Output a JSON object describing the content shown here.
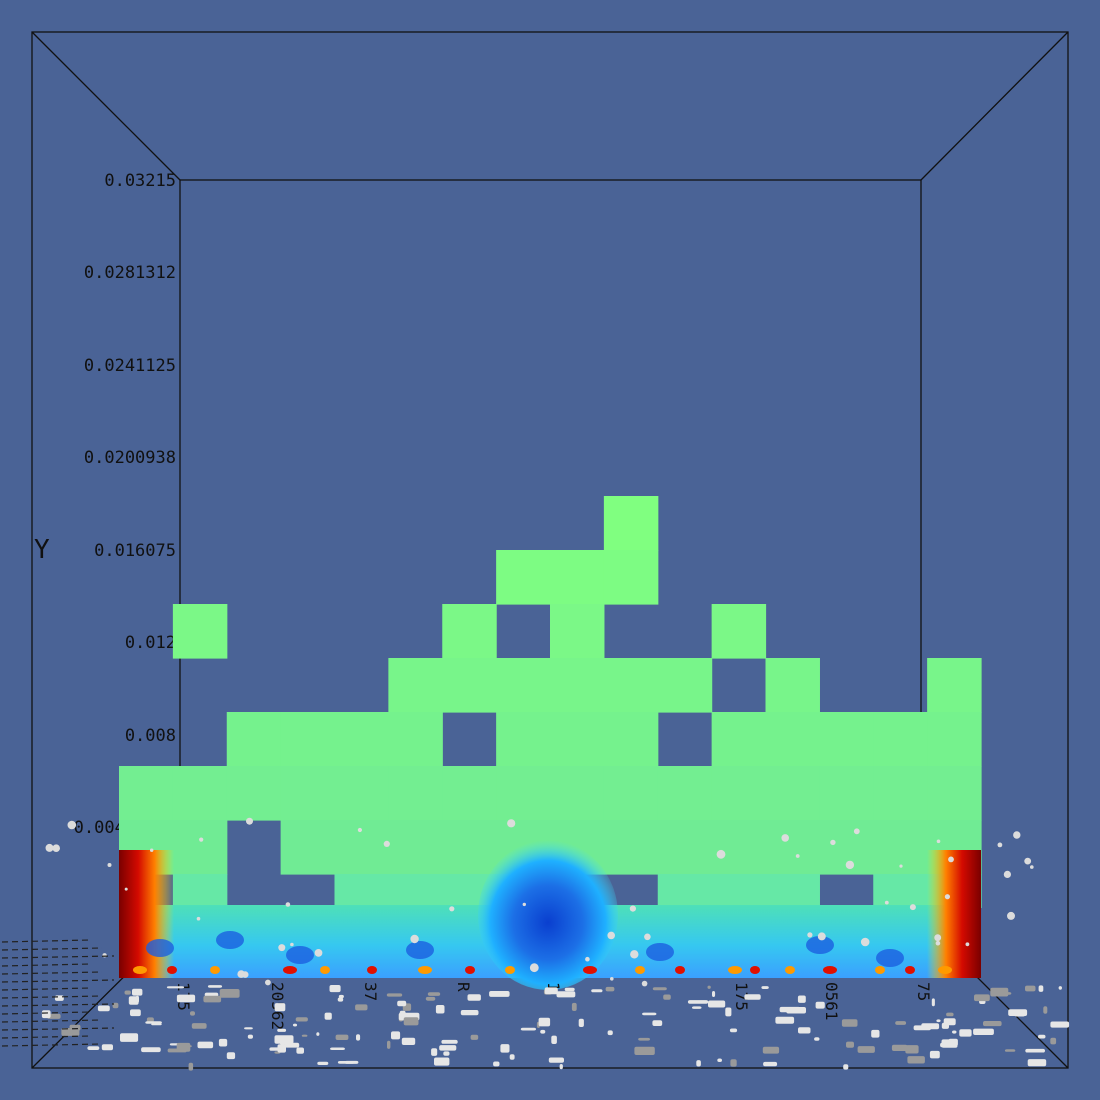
{
  "background": "#4a6396",
  "chart_data": {
    "type": "heatmap",
    "title": "",
    "ylabel": "Y",
    "xlabel": "",
    "ylim": [
      0.0,
      0.03215
    ],
    "y_ticks": [
      "0.03215",
      "0.0281312",
      "0.0241125",
      "0.0200938",
      "0.016075",
      "0.012",
      "0.008",
      "0.00401875"
    ],
    "x_ticks": [
      "175",
      "20562",
      "37",
      "R",
      "1",
      "175",
      "0561",
      "75"
    ],
    "legend": "none",
    "grid": false,
    "colormap": "jet",
    "colors": {
      "frame": "#111111",
      "cell_top": "#80ff80",
      "cell_mid": "#70f29a",
      "cold": "#0a3fcf",
      "cool": "#1fb0ff",
      "hot": "#e01000",
      "hottest": "#7a0000",
      "particles": "#e6e6e6"
    },
    "grid_shape": {
      "columns": 16,
      "rows": 7
    },
    "field_rows": [
      "0000000001000000",
      "0000000111000000",
      "0100001010010000",
      "0000011111101001",
      "0011110111011111",
      "1111111111111111",
      "1101111111111111"
    ]
  }
}
